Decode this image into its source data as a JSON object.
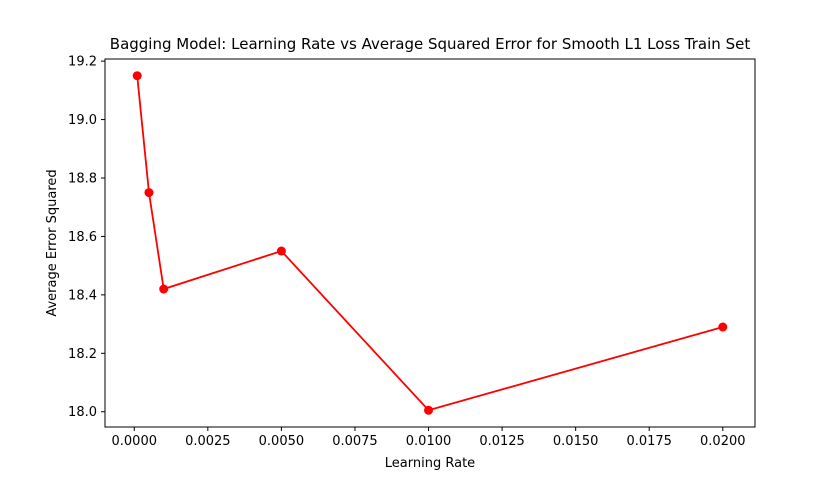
{
  "chart_data": {
    "type": "line",
    "title": "Bagging Model: Learning Rate vs Average Squared Error for Smooth L1 Loss Train Set",
    "xlabel": "Learning Rate",
    "ylabel": "Average Error Squared",
    "x": [
      0.0001,
      0.0005,
      0.001,
      0.005,
      0.01,
      0.02
    ],
    "series": [
      {
        "values": [
          19.15,
          18.75,
          18.42,
          18.55,
          18.005,
          18.29
        ],
        "color": "#ff0000",
        "marker": "circle"
      }
    ],
    "xlim": [
      -0.0009945,
      0.0210945
    ],
    "ylim": [
      17.9477,
      19.2073
    ],
    "xticks": [
      0.0,
      0.0025,
      0.005,
      0.0075,
      0.01,
      0.0125,
      0.015,
      0.0175,
      0.02
    ],
    "xtick_labels": [
      "0.0000",
      "0.0025",
      "0.0050",
      "0.0075",
      "0.0100",
      "0.0125",
      "0.0150",
      "0.0175",
      "0.0200"
    ],
    "yticks": [
      18.0,
      18.2,
      18.4,
      18.6,
      18.8,
      19.0,
      19.2
    ],
    "ytick_labels": [
      "18.0",
      "18.2",
      "18.4",
      "18.6",
      "18.8",
      "19.0",
      "19.2"
    ],
    "grid": false,
    "legend": false
  }
}
